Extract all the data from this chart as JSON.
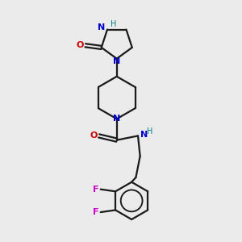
{
  "background_color": "#ebebeb",
  "bond_color": "#1a1a1a",
  "N_color": "#0000cc",
  "O_color": "#cc0000",
  "F_color": "#cc00cc",
  "NH_color": "#008080",
  "line_width": 1.6,
  "figsize": [
    3.0,
    3.0
  ],
  "dpi": 100,
  "xlim": [
    -1.2,
    1.4
  ],
  "ylim": [
    -2.8,
    2.8
  ]
}
